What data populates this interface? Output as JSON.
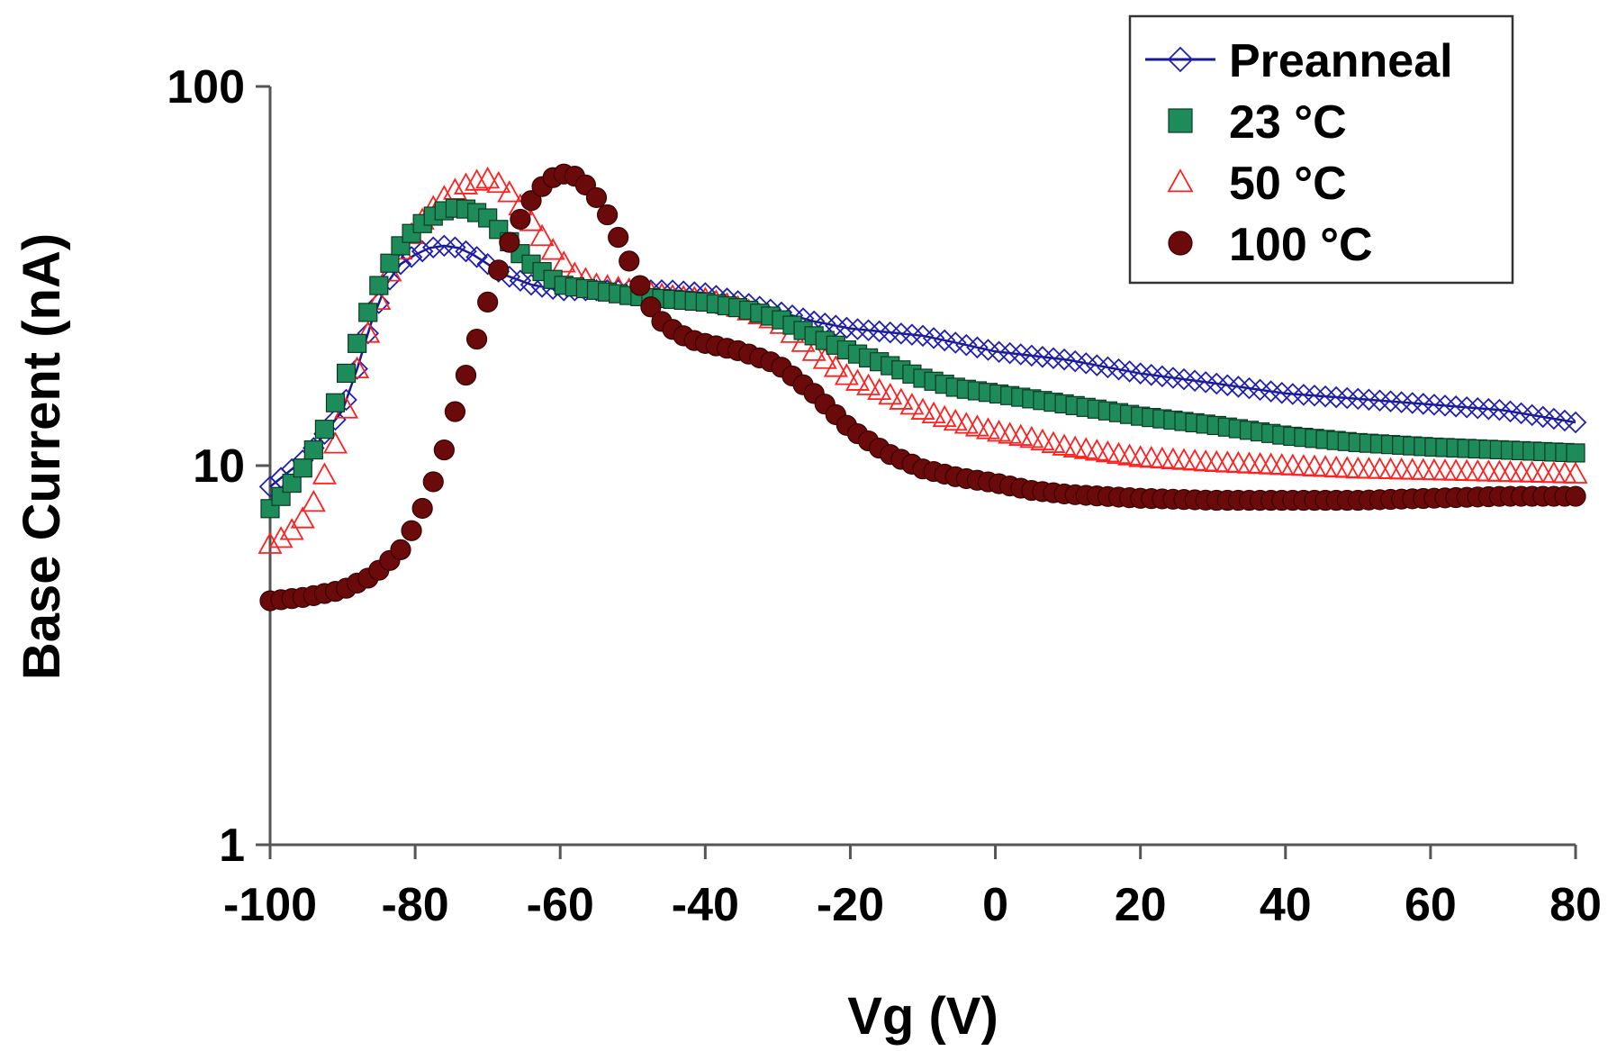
{
  "chart_data": {
    "type": "scatter",
    "title": "",
    "xlabel": "Vg (V)",
    "ylabel": "Base Current (nA)",
    "xlim": [
      -100,
      80
    ],
    "ylim": [
      1,
      100
    ],
    "yscale": "log",
    "xticks": [
      -100,
      -80,
      -60,
      -40,
      -20,
      0,
      20,
      40,
      60,
      80
    ],
    "xtick_labels": [
      "-100",
      "-80",
      "-60",
      "-40",
      "-20",
      "0",
      "20",
      "40",
      "60",
      "80"
    ],
    "yticks": [
      1,
      10,
      100
    ],
    "ytick_labels": [
      "1",
      "10",
      "100"
    ],
    "legend_position": "top-right",
    "series": [
      {
        "name": "Preanneal",
        "marker": "diamond-open",
        "color": "#1f1fb4",
        "line": true,
        "x": [
          -100,
          -95,
          -90,
          -88,
          -86,
          -84,
          -82,
          -80,
          -78,
          -76,
          -74,
          -72,
          -70,
          -68,
          -66,
          -64,
          -62,
          -60,
          -55,
          -50,
          -45,
          -40,
          -35,
          -30,
          -25,
          -20,
          -15,
          -10,
          -5,
          0,
          5,
          10,
          20,
          30,
          40,
          50,
          60,
          70,
          80
        ],
        "y": [
          8.8,
          10.5,
          14,
          18,
          24,
          30,
          34,
          36,
          37.5,
          38,
          37.5,
          36,
          34,
          32,
          31,
          30,
          29.5,
          29,
          29,
          29,
          29,
          28.5,
          27,
          25.5,
          24,
          23,
          22.5,
          22,
          21,
          20,
          19.5,
          19,
          17.5,
          16.5,
          15.5,
          15,
          14.5,
          14,
          13
        ]
      },
      {
        "name": "23 °C",
        "marker": "square-filled",
        "color": "#1e8c5a",
        "line": false,
        "x": [
          -100,
          -98,
          -96,
          -94,
          -92,
          -90,
          -88,
          -86,
          -84,
          -82,
          -80,
          -78,
          -76,
          -74,
          -72,
          -70,
          -68,
          -66,
          -64,
          -62,
          -60,
          -55,
          -50,
          -45,
          -40,
          -35,
          -30,
          -25,
          -20,
          -15,
          -10,
          -5,
          0,
          5,
          10,
          20,
          30,
          40,
          50,
          60,
          70,
          80
        ],
        "y": [
          7.7,
          8.5,
          9.5,
          11,
          13,
          16.5,
          21,
          27,
          33,
          38,
          42,
          45,
          47,
          48,
          47,
          45,
          41,
          37,
          34,
          32,
          30,
          29,
          28,
          27.5,
          27,
          26,
          24.5,
          22,
          20,
          18.5,
          17,
          16,
          15.5,
          15,
          14.5,
          13.5,
          12.8,
          12,
          11.5,
          11.2,
          11,
          10.8
        ]
      },
      {
        "name": "50 °C",
        "marker": "triangle-open",
        "color": "#ff2020",
        "line": false,
        "x": [
          -100,
          -98,
          -96,
          -94,
          -92,
          -90,
          -88,
          -86,
          -84,
          -82,
          -80,
          -78,
          -76,
          -74,
          -72,
          -70,
          -68,
          -66,
          -64,
          -62,
          -60,
          -58,
          -55,
          -50,
          -45,
          -40,
          -35,
          -30,
          -25,
          -20,
          -15,
          -10,
          -5,
          0,
          5,
          10,
          20,
          30,
          40,
          50,
          60,
          70,
          80
        ],
        "y": [
          6.2,
          6.5,
          7,
          8,
          10,
          13,
          18,
          24,
          31,
          37,
          42,
          47,
          51,
          54,
          56,
          57,
          55,
          50,
          44,
          39,
          35,
          32,
          30,
          29,
          28,
          27.5,
          26,
          24,
          20,
          17,
          15.5,
          14,
          13,
          12.3,
          11.8,
          11.2,
          10.5,
          10.2,
          10,
          9.8,
          9.7,
          9.6,
          9.5
        ]
      },
      {
        "name": "100 °C",
        "marker": "circle-filled",
        "color": "#6b0a0a",
        "line": false,
        "x": [
          -100,
          -95,
          -90,
          -88,
          -86,
          -84,
          -82,
          -80,
          -78,
          -76,
          -74,
          -72,
          -70,
          -68,
          -66,
          -64,
          -62,
          -60,
          -58,
          -56,
          -54,
          -52,
          -50,
          -48,
          -46,
          -44,
          -42,
          -40,
          -35,
          -30,
          -25,
          -20,
          -15,
          -10,
          -5,
          0,
          5,
          10,
          20,
          30,
          40,
          50,
          60,
          70,
          80
        ],
        "y": [
          4.4,
          4.5,
          4.7,
          4.9,
          5.1,
          5.5,
          6,
          7,
          8.5,
          11,
          15,
          20,
          27,
          35,
          43,
          50,
          56,
          59,
          58,
          54,
          48,
          40,
          33,
          27,
          24,
          22.5,
          21.5,
          21,
          20,
          18.5,
          15.5,
          12.5,
          10.8,
          9.8,
          9.3,
          9,
          8.6,
          8.4,
          8.2,
          8.1,
          8.1,
          8.1,
          8.2,
          8.3,
          8.3
        ]
      }
    ]
  }
}
